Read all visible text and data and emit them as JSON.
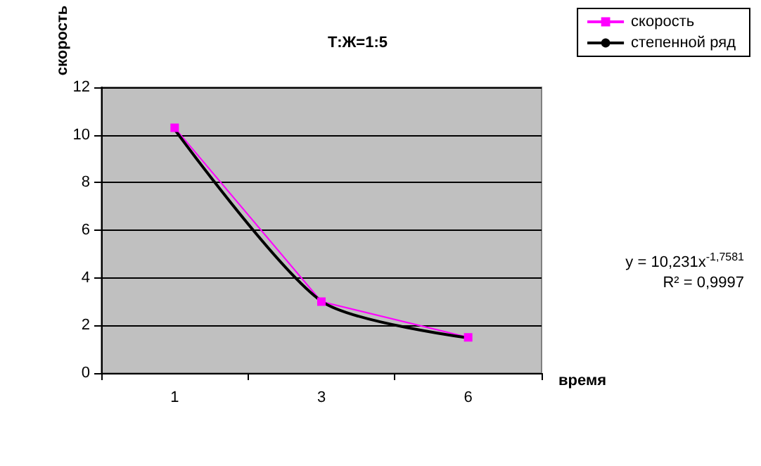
{
  "chart_data": {
    "type": "line",
    "title": "Т:Ж=1:5",
    "xlabel": "время",
    "ylabel": "скорость",
    "categories": [
      "1",
      "3",
      "6"
    ],
    "ylim": [
      0,
      12
    ],
    "yticks": [
      0,
      2,
      4,
      6,
      8,
      10,
      12
    ],
    "grid": "y",
    "legend": "top right",
    "marker": "square",
    "series": [
      {
        "name": "скорость",
        "color": "#ff00ff",
        "values": [
          10.3,
          3.0,
          1.5
        ]
      },
      {
        "name": "степенной ряд",
        "color": "#000000",
        "type": "line",
        "marker": "none",
        "values": [
          10.23,
          3.02,
          1.48
        ]
      }
    ],
    "annotations": [
      "y = 10,231x$^{-1,7581}$",
      "R² = 0,9997"
    ]
  }
}
